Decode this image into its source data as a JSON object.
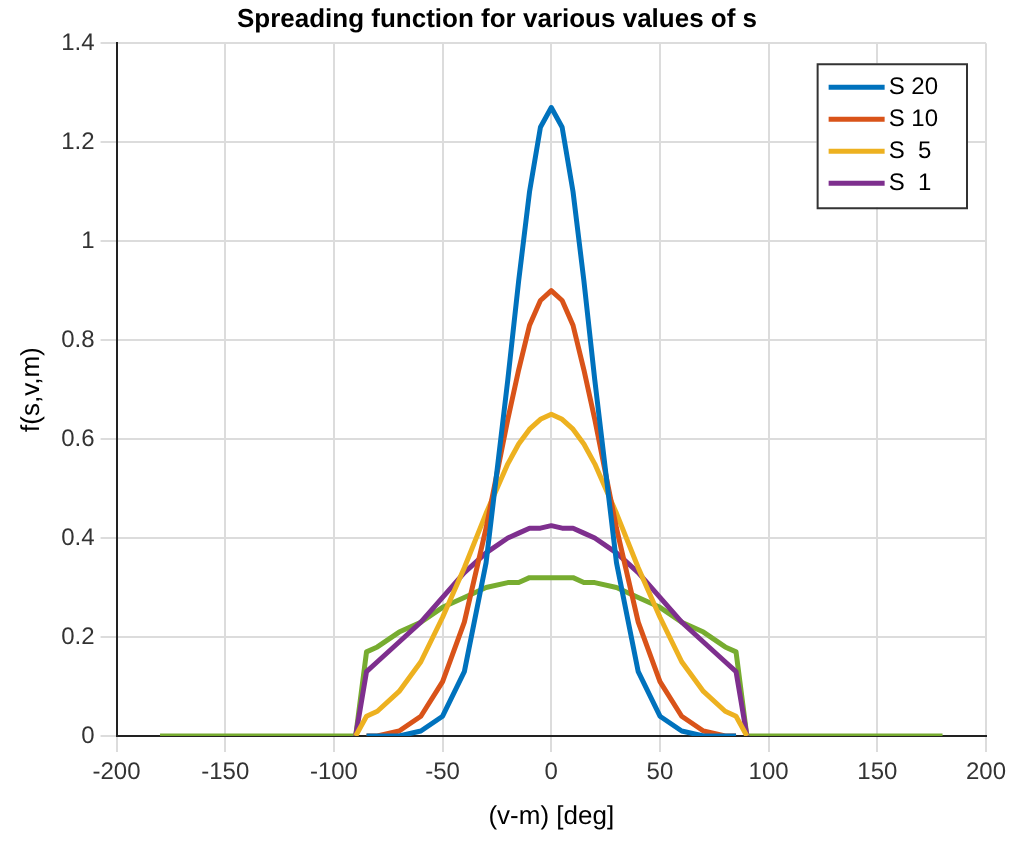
{
  "chart_data": {
    "type": "line",
    "title": "Spreading function for various values of s",
    "xlabel": "(v-m) [deg]",
    "ylabel": "f(s,v,m)",
    "x": [
      -180,
      -90,
      -85,
      -80,
      -70,
      -60,
      -50,
      -40,
      -30,
      -20,
      -15,
      -10,
      -5,
      0,
      5,
      10,
      15,
      20,
      30,
      40,
      50,
      60,
      70,
      80,
      85,
      90,
      180
    ],
    "series": [
      {
        "name": "S 20",
        "color": "#0072bd",
        "values": [
          null,
          null,
          0,
          0,
          0,
          0.01,
          0.04,
          0.13,
          0.35,
          0.72,
          0.92,
          1.1,
          1.23,
          1.27,
          1.23,
          1.1,
          0.92,
          0.72,
          0.35,
          0.13,
          0.04,
          0.01,
          0,
          0,
          0,
          null,
          null
        ]
      },
      {
        "name": "S 10",
        "color": "#d95319",
        "values": [
          null,
          null,
          0,
          0,
          0.01,
          0.04,
          0.11,
          0.23,
          0.42,
          0.64,
          0.74,
          0.83,
          0.88,
          0.9,
          0.88,
          0.83,
          0.74,
          0.64,
          0.42,
          0.23,
          0.11,
          0.04,
          0.01,
          0,
          0,
          null,
          null
        ]
      },
      {
        "name": "S  5",
        "color": "#edb120",
        "values": [
          null,
          0,
          0.04,
          0.05,
          0.09,
          0.15,
          0.24,
          0.34,
          0.45,
          0.55,
          0.59,
          0.62,
          0.64,
          0.65,
          0.64,
          0.62,
          0.59,
          0.55,
          0.45,
          0.34,
          0.24,
          0.15,
          0.09,
          0.05,
          0.04,
          0,
          null
        ]
      },
      {
        "name": "S  1",
        "color": "#7e2f8e",
        "values": [
          null,
          0,
          0.13,
          0.15,
          0.19,
          0.23,
          0.28,
          0.33,
          0.37,
          0.4,
          0.41,
          0.42,
          0.42,
          0.425,
          0.42,
          0.42,
          0.41,
          0.4,
          0.37,
          0.33,
          0.28,
          0.23,
          0.19,
          0.15,
          0.13,
          0,
          null
        ]
      },
      {
        "color": "#77ac30",
        "values": [
          0,
          0,
          0.17,
          0.18,
          0.21,
          0.23,
          0.26,
          0.28,
          0.3,
          0.31,
          0.31,
          0.32,
          0.32,
          0.32,
          0.32,
          0.32,
          0.31,
          0.31,
          0.3,
          0.28,
          0.26,
          0.23,
          0.21,
          0.18,
          0.17,
          0,
          0
        ]
      }
    ],
    "xlim": [
      -200,
      200
    ],
    "xticks": [
      -200,
      -150,
      -100,
      -50,
      0,
      50,
      100,
      150,
      200
    ],
    "ylim": [
      0,
      1.4
    ],
    "yticks": [
      0,
      0.2,
      0.4,
      0.6,
      0.8,
      1,
      1.2,
      1.4
    ],
    "grid": true,
    "legend": "top right",
    "marker": "none",
    "line_style": "solid"
  }
}
